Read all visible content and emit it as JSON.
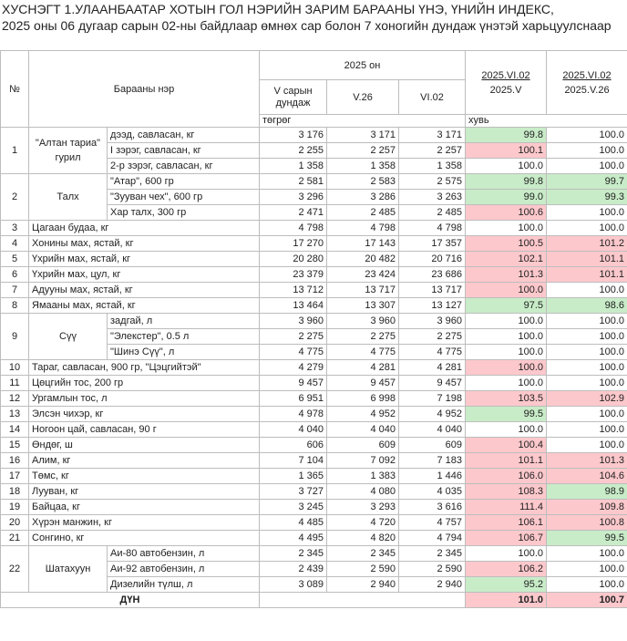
{
  "titles": {
    "line1": "ХУСНЭГТ 1.УЛААНБААТАР ХОТЫН ГОЛ НЭРИЙН ЗАРИМ БАРААНЫ ҮНЭ, ҮНИЙН ИНДЕКС,",
    "line2": "2025 оны 06 дугаар сарын 02-ны байдлаар өмнөх сар болон 7 хоногийн дундаж үнэтэй харьцуулснаар"
  },
  "header": {
    "no": "№",
    "name": "Барааны нэр",
    "year": "2025 он",
    "col_v": "V сарын дундаж",
    "col_v26": "V.26",
    "col_vi02": "VI.02",
    "idx1_top": "2025.VI.02",
    "idx1_bot": "2025.V",
    "idx2_top": "2025.VI.02",
    "idx2_bot": "2025.V.26",
    "unit_price": "төгрөг",
    "unit_pct": "хувь"
  },
  "colors": {
    "pink": "#fcc8cc",
    "green": "#c8ecc8"
  },
  "rows": [
    {
      "no": "1",
      "group": "\"Алтан тариа\" гурил",
      "span": 3,
      "name": "дээд, савласан, кг",
      "v": "3 176",
      "v26": "3 171",
      "vi02": "3 171",
      "i1": "99.8",
      "c1": "green",
      "i2": "100.0",
      "c2": ""
    },
    {
      "name": "I зэрэг, савласан, кг",
      "v": "2 255",
      "v26": "2 257",
      "vi02": "2 257",
      "i1": "100.1",
      "c1": "pink",
      "i2": "100.0",
      "c2": ""
    },
    {
      "name": "2-р зэрэг, савласан, кг",
      "v": "1 358",
      "v26": "1 358",
      "vi02": "1 358",
      "i1": "100.0",
      "c1": "",
      "i2": "100.0",
      "c2": ""
    },
    {
      "no": "2",
      "group": "Талх",
      "span": 3,
      "name": "\"Атар\", 600 гр",
      "v": "2 581",
      "v26": "2 583",
      "vi02": "2 575",
      "i1": "99.8",
      "c1": "green",
      "i2": "99.7",
      "c2": "green"
    },
    {
      "name": "\"Зууван чех\", 600 гр",
      "v": "3 296",
      "v26": "3 286",
      "vi02": "3 263",
      "i1": "99.0",
      "c1": "green",
      "i2": "99.3",
      "c2": "green"
    },
    {
      "name": "Хар талх, 300 гр",
      "v": "2 471",
      "v26": "2 485",
      "vi02": "2 485",
      "i1": "100.6",
      "c1": "pink",
      "i2": "100.0",
      "c2": ""
    },
    {
      "no": "3",
      "full": "Цагаан будаа, кг",
      "v": "4 798",
      "v26": "4 798",
      "vi02": "4 798",
      "i1": "100.0",
      "c1": "",
      "i2": "100.0",
      "c2": ""
    },
    {
      "no": "4",
      "full": "Хонины мах, ястай, кг",
      "v": "17 270",
      "v26": "17 143",
      "vi02": "17 357",
      "i1": "100.5",
      "c1": "pink",
      "i2": "101.2",
      "c2": "pink"
    },
    {
      "no": "5",
      "full": "Үхрийн мах, ястай, кг",
      "v": "20 280",
      "v26": "20 482",
      "vi02": "20 716",
      "i1": "102.1",
      "c1": "pink",
      "i2": "101.1",
      "c2": "pink"
    },
    {
      "no": "6",
      "full": "Үхрийн мах, цул, кг",
      "v": "23 379",
      "v26": "23 424",
      "vi02": "23 686",
      "i1": "101.3",
      "c1": "pink",
      "i2": "101.1",
      "c2": "pink"
    },
    {
      "no": "7",
      "full": "Адууны мах, ястай, кг",
      "v": "13 712",
      "v26": "13 717",
      "vi02": "13 717",
      "i1": "100.0",
      "c1": "pink",
      "i2": "100.0",
      "c2": ""
    },
    {
      "no": "8",
      "full": "Ямааны мах, ястай, кг",
      "v": "13 464",
      "v26": "13 307",
      "vi02": "13 127",
      "i1": "97.5",
      "c1": "green",
      "i2": "98.6",
      "c2": "green"
    },
    {
      "no": "9",
      "group": "Сүү",
      "span": 3,
      "name": "задгай, л",
      "v": "3 960",
      "v26": "3 960",
      "vi02": "3 960",
      "i1": "100.0",
      "c1": "",
      "i2": "100.0",
      "c2": ""
    },
    {
      "name": "\"Элекстер\", 0.5 л",
      "v": "2 275",
      "v26": "2 275",
      "vi02": "2 275",
      "i1": "100.0",
      "c1": "",
      "i2": "100.0",
      "c2": ""
    },
    {
      "name": "\"Шинэ Сүү\", л",
      "v": "4 775",
      "v26": "4 775",
      "vi02": "4 775",
      "i1": "100.0",
      "c1": "",
      "i2": "100.0",
      "c2": ""
    },
    {
      "no": "10",
      "full": "Тараг, савласан, 900 гр, \"Цэцгийтэй\"",
      "v": "4 279",
      "v26": "4 281",
      "vi02": "4 281",
      "i1": "100.0",
      "c1": "pink",
      "i2": "100.0",
      "c2": ""
    },
    {
      "no": "11",
      "full": "Цөцгийн тос, 200 гр",
      "v": "9 457",
      "v26": "9 457",
      "vi02": "9 457",
      "i1": "100.0",
      "c1": "",
      "i2": "100.0",
      "c2": ""
    },
    {
      "no": "12",
      "full": "Ургамлын тос, л",
      "v": "6 951",
      "v26": "6 998",
      "vi02": "7 198",
      "i1": "103.5",
      "c1": "pink",
      "i2": "102.9",
      "c2": "pink"
    },
    {
      "no": "13",
      "full": "Элсэн чихэр, кг",
      "v": "4 978",
      "v26": "4 952",
      "vi02": "4 952",
      "i1": "99.5",
      "c1": "green",
      "i2": "100.0",
      "c2": ""
    },
    {
      "no": "14",
      "full": "Ногоон цай, савласан, 90 г",
      "v": "4 040",
      "v26": "4 040",
      "vi02": "4 040",
      "i1": "100.0",
      "c1": "",
      "i2": "100.0",
      "c2": ""
    },
    {
      "no": "15",
      "full": "Өндөг, ш",
      "v": "606",
      "v26": "609",
      "vi02": "609",
      "i1": "100.4",
      "c1": "pink",
      "i2": "100.0",
      "c2": ""
    },
    {
      "no": "16",
      "full": "Алим, кг",
      "v": "7 104",
      "v26": "7 092",
      "vi02": "7 183",
      "i1": "101.1",
      "c1": "pink",
      "i2": "101.3",
      "c2": "pink"
    },
    {
      "no": "17",
      "full": "Төмс, кг",
      "v": "1 365",
      "v26": "1 383",
      "vi02": "1 446",
      "i1": "106.0",
      "c1": "pink",
      "i2": "104.6",
      "c2": "pink"
    },
    {
      "no": "18",
      "full": "Лууван, кг",
      "v": "3 727",
      "v26": "4 080",
      "vi02": "4 035",
      "i1": "108.3",
      "c1": "pink",
      "i2": "98.9",
      "c2": "green"
    },
    {
      "no": "19",
      "full": "Байцаа, кг",
      "v": "3 245",
      "v26": "3 293",
      "vi02": "3 616",
      "i1": "111.4",
      "c1": "pink",
      "i2": "109.8",
      "c2": "pink"
    },
    {
      "no": "20",
      "full": "Хүрэн манжин, кг",
      "v": "4 485",
      "v26": "4 720",
      "vi02": "4 757",
      "i1": "106.1",
      "c1": "pink",
      "i2": "100.8",
      "c2": "pink"
    },
    {
      "no": "21",
      "full": "Сонгино, кг",
      "v": "4 495",
      "v26": "4 820",
      "vi02": "4 794",
      "i1": "106.7",
      "c1": "pink",
      "i2": "99.5",
      "c2": "green"
    },
    {
      "no": "22",
      "group": "Шатахуун",
      "span": 3,
      "name": "Аи-80 автобензин, л",
      "v": "2 345",
      "v26": "2 345",
      "vi02": "2 345",
      "i1": "100.0",
      "c1": "",
      "i2": "100.0",
      "c2": ""
    },
    {
      "name": "Аи-92 автобензин, л",
      "v": "2 439",
      "v26": "2 590",
      "vi02": "2 590",
      "i1": "106.2",
      "c1": "pink",
      "i2": "100.0",
      "c2": ""
    },
    {
      "name": "Дизелийн түлш, л",
      "v": "3 089",
      "v26": "2 940",
      "vi02": "2 940",
      "i1": "95.2",
      "c1": "green",
      "i2": "100.0",
      "c2": ""
    }
  ],
  "total": {
    "label": "ДҮН",
    "i1": "101.0",
    "i2": "100.7"
  }
}
